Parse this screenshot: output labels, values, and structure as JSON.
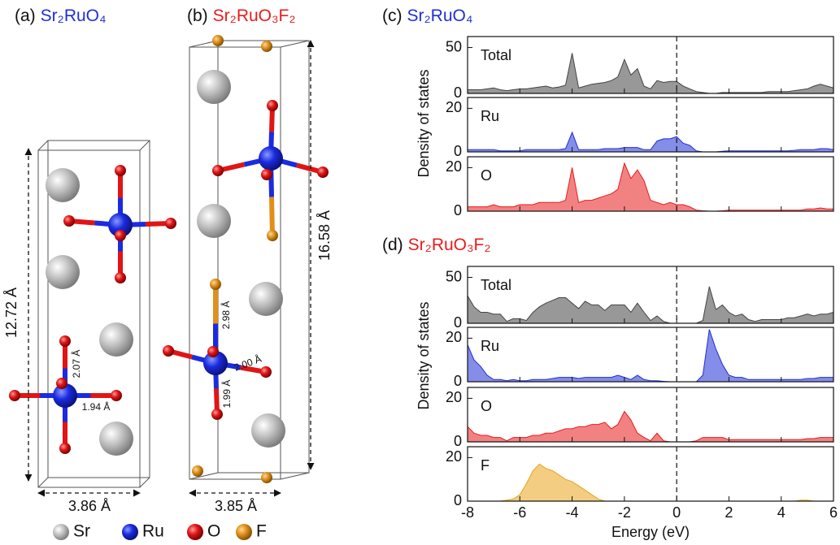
{
  "structures": [
    {
      "label": "(a)",
      "formula": "Sr₂RuO₄",
      "dimensions": [
        "12.72 Å",
        "3.86 Å"
      ],
      "bonds": [
        "2.07 Å",
        "1.94 Å"
      ]
    },
    {
      "label": "(b)",
      "formula": "Sr₂RuO₃F₂",
      "dimensions": [
        "16.58 Å",
        "3.85 Å"
      ],
      "bonds": [
        "2.98 Å",
        "2.00 Å",
        "1.99 Å"
      ]
    }
  ],
  "legend": [
    "Sr",
    "Ru",
    "O",
    "F"
  ],
  "dos_panels": [
    {
      "label": "(c)",
      "formula": "Sr₂RuO₄"
    },
    {
      "label": "(d)",
      "formula": "Sr₂RuO₃F₂"
    }
  ],
  "dos_axes": {
    "ylabel": "Density of states",
    "xlabel": "Energy (eV)"
  },
  "chart_data": [
    {
      "type": "area",
      "x": [
        -8,
        -7.75,
        -7.5,
        -7.25,
        -7,
        -6.75,
        -6.5,
        -6.25,
        -6,
        -5.75,
        -5.5,
        -5.25,
        -5,
        -4.75,
        -4.5,
        -4.25,
        -4,
        -3.75,
        -3.5,
        -3.25,
        -3,
        -2.75,
        -2.5,
        -2.25,
        -2,
        -1.75,
        -1.5,
        -1.25,
        -1,
        -0.75,
        -0.5,
        -0.25,
        0,
        0.25,
        0.5,
        0.75,
        1,
        1.25,
        1.5,
        1.75,
        2,
        2.25,
        2.5,
        2.75,
        3,
        3.25,
        3.5,
        3.75,
        4,
        4.25,
        4.5,
        4.75,
        5,
        5.25,
        5.5,
        5.75,
        6
      ],
      "series": [
        {
          "name": "Total",
          "color": "#444444",
          "values": [
            4,
            4,
            4,
            5,
            6,
            4,
            3,
            4,
            5,
            5,
            6,
            7,
            8,
            6,
            7,
            9,
            44,
            6,
            8,
            10,
            11,
            12,
            14,
            18,
            37,
            20,
            27,
            8,
            5,
            14,
            12,
            13,
            13,
            8,
            5,
            2,
            1,
            0,
            0,
            1,
            1,
            1,
            1,
            1,
            1,
            1,
            2,
            2,
            2,
            2,
            3,
            4,
            5,
            8,
            10,
            8,
            6
          ]
        }
      ],
      "xlim": [
        -8,
        6
      ],
      "ylim": [
        0,
        62
      ],
      "xticks": [
        -8,
        -6,
        -4,
        -2,
        0,
        2,
        4,
        6
      ],
      "yticks": [
        0,
        50
      ],
      "vline": 0
    },
    {
      "type": "area",
      "x": [
        -8,
        -7.75,
        -7.5,
        -7.25,
        -7,
        -6.75,
        -6.5,
        -6.25,
        -6,
        -5.75,
        -5.5,
        -5.25,
        -5,
        -4.75,
        -4.5,
        -4.25,
        -4,
        -3.75,
        -3.5,
        -3.25,
        -3,
        -2.75,
        -2.5,
        -2.25,
        -2,
        -1.75,
        -1.5,
        -1.25,
        -1,
        -0.75,
        -0.5,
        -0.25,
        0,
        0.25,
        0.5,
        0.75,
        1,
        1.25,
        1.5,
        1.75,
        2,
        2.25,
        2.5,
        2.75,
        3,
        3.25,
        3.5,
        3.75,
        4,
        4.25,
        4.5,
        4.75,
        5,
        5.25,
        5.5,
        5.75,
        6
      ],
      "series": [
        {
          "name": "Ru",
          "color": "#1f2fd6",
          "values": [
            1,
            1,
            1,
            1,
            1,
            0.5,
            0.5,
            0.5,
            0.5,
            1,
            1,
            1,
            1,
            1,
            1,
            1.5,
            9,
            1,
            1,
            1,
            1,
            1.5,
            1.5,
            1.5,
            2,
            2,
            2,
            1,
            1,
            5,
            6,
            6,
            7,
            4,
            3,
            0.5,
            0,
            0,
            0,
            0.3,
            0.5,
            0.5,
            0.5,
            0.5,
            0.5,
            0.5,
            0.5,
            0.5,
            0.5,
            0.5,
            0.7,
            1,
            1,
            1,
            1.5,
            1.5,
            1
          ]
        }
      ],
      "xlim": [
        -8,
        6
      ],
      "ylim": [
        0,
        25
      ],
      "xticks": [
        -8,
        -6,
        -4,
        -2,
        0,
        2,
        4,
        6
      ],
      "yticks": [
        0,
        20
      ],
      "vline": 0
    },
    {
      "type": "area",
      "x": [
        -8,
        -7.75,
        -7.5,
        -7.25,
        -7,
        -6.75,
        -6.5,
        -6.25,
        -6,
        -5.75,
        -5.5,
        -5.25,
        -5,
        -4.75,
        -4.5,
        -4.25,
        -4,
        -3.75,
        -3.5,
        -3.25,
        -3,
        -2.75,
        -2.5,
        -2.25,
        -2,
        -1.75,
        -1.5,
        -1.25,
        -1,
        -0.75,
        -0.5,
        -0.25,
        0,
        0.25,
        0.5,
        0.75,
        1,
        1.25,
        1.5,
        1.75,
        2,
        2.25,
        2.5,
        2.75,
        3,
        3.25,
        3.5,
        3.75,
        4,
        4.25,
        4.5,
        4.75,
        5,
        5.25,
        5.5,
        5.75,
        6
      ],
      "series": [
        {
          "name": "O",
          "color": "#e81c1c",
          "values": [
            2,
            2,
            2,
            2,
            3,
            2,
            2,
            2,
            3,
            3,
            3,
            4,
            4,
            4,
            4,
            5,
            20,
            4,
            5,
            5,
            6,
            7,
            8,
            10,
            22,
            15,
            19,
            14,
            5,
            4,
            3,
            4,
            3,
            3,
            2,
            0.5,
            0.2,
            0,
            0,
            0.2,
            0.5,
            0.5,
            0.5,
            0.5,
            0.5,
            0.5,
            0.5,
            0.5,
            0.5,
            0.5,
            0.5,
            0.5,
            1,
            1,
            1.5,
            1,
            1
          ]
        }
      ],
      "xlim": [
        -8,
        6
      ],
      "ylim": [
        0,
        25
      ],
      "xticks": [
        -8,
        -6,
        -4,
        -2,
        0,
        2,
        4,
        6
      ],
      "yticks": [
        0,
        20
      ],
      "vline": 0
    },
    {
      "type": "area",
      "x": [
        -8,
        -7.75,
        -7.5,
        -7.25,
        -7,
        -6.75,
        -6.5,
        -6.25,
        -6,
        -5.75,
        -5.5,
        -5.25,
        -5,
        -4.75,
        -4.5,
        -4.25,
        -4,
        -3.75,
        -3.5,
        -3.25,
        -3,
        -2.75,
        -2.5,
        -2.25,
        -2,
        -1.75,
        -1.5,
        -1.25,
        -1,
        -0.75,
        -0.5,
        -0.25,
        0,
        0.25,
        0.5,
        0.75,
        1,
        1.25,
        1.5,
        1.75,
        2,
        2.25,
        2.5,
        2.75,
        3,
        3.25,
        3.5,
        3.75,
        4,
        4.25,
        4.5,
        4.75,
        5,
        5.25,
        5.5,
        5.75,
        6
      ],
      "series": [
        {
          "name": "Total",
          "color": "#444444",
          "values": [
            30,
            18,
            12,
            12,
            10,
            10,
            2,
            5,
            5,
            3,
            12,
            18,
            22,
            25,
            28,
            28,
            22,
            16,
            24,
            20,
            20,
            14,
            20,
            20,
            20,
            12,
            22,
            12,
            3,
            8,
            2,
            0,
            0,
            0,
            0,
            0,
            3,
            40,
            15,
            20,
            12,
            8,
            10,
            4,
            2,
            4,
            4,
            4,
            4,
            6,
            6,
            8,
            10,
            8,
            10,
            10,
            12
          ]
        }
      ],
      "xlim": [
        -8,
        6
      ],
      "ylim": [
        0,
        62
      ],
      "xticks": [
        -8,
        -6,
        -4,
        -2,
        0,
        2,
        4,
        6
      ],
      "yticks": [
        0,
        50
      ],
      "vline": 0
    },
    {
      "type": "area",
      "x": [
        -8,
        -7.75,
        -7.5,
        -7.25,
        -7,
        -6.75,
        -6.5,
        -6.25,
        -6,
        -5.75,
        -5.5,
        -5.25,
        -5,
        -4.75,
        -4.5,
        -4.25,
        -4,
        -3.75,
        -3.5,
        -3.25,
        -3,
        -2.75,
        -2.5,
        -2.25,
        -2,
        -1.75,
        -1.5,
        -1.25,
        -1,
        -0.75,
        -0.5,
        -0.25,
        0,
        0.25,
        0.5,
        0.75,
        1,
        1.25,
        1.5,
        1.75,
        2,
        2.25,
        2.5,
        2.75,
        3,
        3.25,
        3.5,
        3.75,
        4,
        4.25,
        4.5,
        4.75,
        5,
        5.25,
        5.5,
        5.75,
        6
      ],
      "series": [
        {
          "name": "Ru",
          "color": "#1f2fd6",
          "values": [
            17,
            10,
            7,
            3,
            1,
            1,
            0.5,
            1,
            0.5,
            0.5,
            1,
            1,
            1,
            1.5,
            2,
            2,
            2,
            1.5,
            2,
            2,
            2,
            2,
            2,
            3,
            2,
            1,
            3,
            1,
            0.5,
            0.5,
            0.2,
            0,
            0,
            0,
            0,
            0,
            3,
            24,
            15,
            8,
            3,
            2,
            2,
            1,
            1,
            1,
            1,
            1,
            1,
            1,
            1,
            1,
            1.5,
            1.5,
            2,
            2,
            2
          ]
        }
      ],
      "xlim": [
        -8,
        6
      ],
      "ylim": [
        0,
        25
      ],
      "xticks": [
        -8,
        -6,
        -4,
        -2,
        0,
        2,
        4,
        6
      ],
      "yticks": [
        0,
        20
      ],
      "vline": 0
    },
    {
      "type": "area",
      "x": [
        -8,
        -7.75,
        -7.5,
        -7.25,
        -7,
        -6.75,
        -6.5,
        -6.25,
        -6,
        -5.75,
        -5.5,
        -5.25,
        -5,
        -4.75,
        -4.5,
        -4.25,
        -4,
        -3.75,
        -3.5,
        -3.25,
        -3,
        -2.75,
        -2.5,
        -2.25,
        -2,
        -1.75,
        -1.5,
        -1.25,
        -1,
        -0.75,
        -0.5,
        -0.25,
        0,
        0.25,
        0.5,
        0.75,
        1,
        1.25,
        1.5,
        1.75,
        2,
        2.25,
        2.5,
        2.75,
        3,
        3.25,
        3.5,
        3.75,
        4,
        4.25,
        4.5,
        4.75,
        5,
        5.25,
        5.5,
        5.75,
        6
      ],
      "series": [
        {
          "name": "O",
          "color": "#e81c1c",
          "values": [
            7,
            4,
            3,
            3,
            2,
            2,
            0.5,
            2,
            2,
            2,
            3,
            3,
            4,
            4,
            5,
            6,
            6,
            7,
            7,
            8,
            8,
            9,
            6,
            8,
            14,
            10,
            4,
            2,
            0.5,
            4,
            0.5,
            0,
            0,
            0,
            0,
            0.5,
            2,
            2,
            2,
            2,
            1,
            1,
            1,
            1,
            1,
            1,
            1,
            1,
            1,
            1,
            1,
            1,
            1.5,
            1.5,
            2,
            2,
            2
          ]
        }
      ],
      "xlim": [
        -8,
        6
      ],
      "ylim": [
        0,
        25
      ],
      "xticks": [
        -8,
        -6,
        -4,
        -2,
        0,
        2,
        4,
        6
      ],
      "yticks": [
        0,
        20
      ],
      "vline": 0
    },
    {
      "type": "area",
      "x": [
        -8,
        -7.75,
        -7.5,
        -7.25,
        -7,
        -6.75,
        -6.5,
        -6.25,
        -6,
        -5.75,
        -5.5,
        -5.25,
        -5,
        -4.75,
        -4.5,
        -4.25,
        -4,
        -3.75,
        -3.5,
        -3.25,
        -3,
        -2.75,
        -2.5,
        -2.25,
        -2,
        -1.75,
        -1.5,
        -1.25,
        -1,
        -0.75,
        -0.5,
        -0.25,
        0,
        0.25,
        0.5,
        0.75,
        1,
        1.25,
        1.5,
        1.75,
        2,
        2.25,
        2.5,
        2.75,
        3,
        3.25,
        3.5,
        3.75,
        4,
        4.25,
        4.5,
        4.75,
        5,
        5.25,
        5.5,
        5.75,
        6
      ],
      "series": [
        {
          "name": "F",
          "color": "#e8a41c",
          "values": [
            0,
            0,
            0,
            0,
            0,
            0,
            0.5,
            1,
            3,
            8,
            14,
            17,
            15,
            14,
            12,
            10,
            9,
            7,
            5,
            3,
            1,
            0,
            0,
            0,
            0,
            0,
            0,
            0,
            0,
            0,
            0,
            0,
            0,
            0,
            0,
            0,
            0,
            0,
            0,
            0,
            0,
            0,
            0,
            0,
            0,
            0,
            0,
            0,
            0,
            0,
            0,
            0.5,
            0.5,
            0,
            0,
            0,
            0
          ]
        }
      ],
      "xlim": [
        -8,
        6
      ],
      "ylim": [
        0,
        25
      ],
      "xticks": [
        -8,
        -6,
        -4,
        -2,
        0,
        2,
        4,
        6
      ],
      "yticks": [
        0,
        20
      ],
      "vline": 0
    }
  ]
}
